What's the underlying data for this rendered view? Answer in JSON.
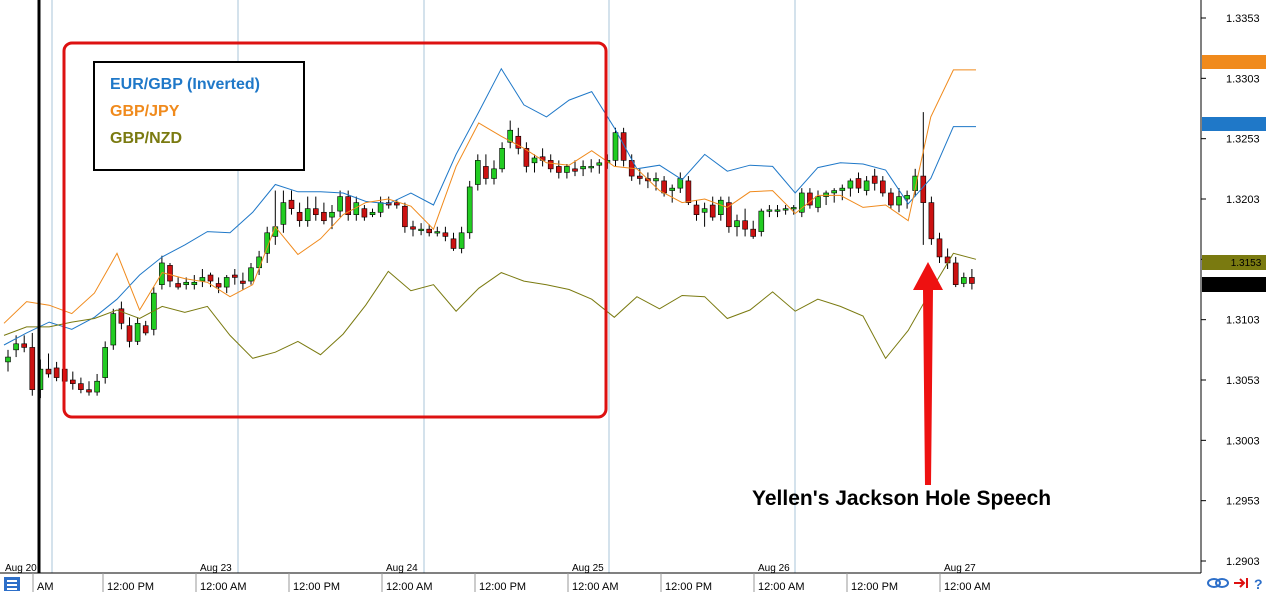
{
  "colors": {
    "eurgbp": "#1f78c8",
    "gbpjpy": "#f08a1c",
    "gbpnzd": "#7a7a10",
    "candle_up": "#22cc22",
    "candle_down": "#cc1111",
    "highlight_box": "#dd1111",
    "arrow": "#ee1111",
    "grid": "#a8c4d8"
  },
  "legend": {
    "items": [
      {
        "label": "EUR/GBP (Inverted)",
        "color": "#1f78c8"
      },
      {
        "label": "GBP/JPY",
        "color": "#f08a1c"
      },
      {
        "label": "GBP/NZD",
        "color": "#7a7a10"
      }
    ]
  },
  "annotation": {
    "text": "Yellen's Jackson Hole Speech",
    "icon": "red-arrow-up-icon"
  },
  "price_badges": {
    "current": "1.3133",
    "hidden_label": "1.3153"
  },
  "chart_data": {
    "type": "line",
    "title": "",
    "ylim": [
      1.2903,
      1.3353
    ],
    "y_ticks": [
      "1.3353",
      "1.3303",
      "1.3253",
      "1.3203",
      "1.3153",
      "1.3103",
      "1.3053",
      "1.3003",
      "1.2953",
      "1.2903"
    ],
    "date_labels": [
      "Aug 20",
      "Aug 23",
      "Aug 24",
      "Aug 25",
      "Aug 26",
      "Aug 27"
    ],
    "time_labels": [
      "AM",
      "12:00 PM",
      "12:00 AM",
      "12:00 PM",
      "12:00 AM",
      "12:00 PM",
      "12:00 AM",
      "12:00 PM",
      "12:00 AM",
      "12:00 PM",
      "12:00 AM"
    ],
    "series": [
      {
        "name": "EUR/GBP (Inverted)",
        "values": [
          1.3082,
          1.3092,
          1.3101,
          1.3095,
          1.3105,
          1.312,
          1.314,
          1.3155,
          1.3165,
          1.3176,
          1.3175,
          1.3192,
          1.3215,
          1.3209,
          1.3209,
          1.3208,
          1.3201,
          1.3199,
          1.3208,
          1.3198,
          1.324,
          1.3275,
          1.3311,
          1.3281,
          1.3271,
          1.3285,
          1.3292,
          1.3262,
          1.3228,
          1.3231,
          1.3219,
          1.324,
          1.3226,
          1.3231,
          1.323,
          1.3208,
          1.3229,
          1.3233,
          1.3232,
          1.3227,
          1.3199,
          1.322,
          1.3263,
          1.3263
        ]
      },
      {
        "name": "GBP/JPY",
        "values": [
          1.31,
          1.3118,
          1.3115,
          1.3108,
          1.3125,
          1.3158,
          1.3111,
          1.3142,
          1.3137,
          1.3134,
          1.3122,
          1.3132,
          1.318,
          1.3157,
          1.317,
          1.319,
          1.32,
          1.3203,
          1.3197,
          1.3178,
          1.323,
          1.3266,
          1.3255,
          1.3245,
          1.3233,
          1.3231,
          1.3243,
          1.323,
          1.3228,
          1.321,
          1.32,
          1.3203,
          1.3196,
          1.3209,
          1.321,
          1.3191,
          1.3206,
          1.3206,
          1.3196,
          1.3198,
          1.3185,
          1.3271,
          1.331,
          1.331
        ]
      },
      {
        "name": "GBP/NZD",
        "values": [
          1.309,
          1.3097,
          1.3097,
          1.3101,
          1.3104,
          1.3111,
          1.3104,
          1.3114,
          1.3109,
          1.3114,
          1.309,
          1.3071,
          1.3076,
          1.3085,
          1.3074,
          1.3091,
          1.3115,
          1.3143,
          1.3127,
          1.3132,
          1.311,
          1.3129,
          1.3142,
          1.3135,
          1.3132,
          1.3128,
          1.312,
          1.3105,
          1.3122,
          1.3112,
          1.3123,
          1.3122,
          1.3104,
          1.3111,
          1.3126,
          1.311,
          1.312,
          1.3114,
          1.3106,
          1.3071,
          1.3094,
          1.3127,
          1.3158,
          1.3153
        ]
      },
      {
        "name": "",
        "candles": [
          [
            1.3068,
            1.3078,
            1.306,
            1.3072
          ],
          [
            1.3078,
            1.309,
            1.3072,
            1.3083
          ],
          [
            1.3083,
            1.309,
            1.3076,
            1.308
          ],
          [
            1.308,
            1.3092,
            1.304,
            1.3045
          ],
          [
            1.3045,
            1.307,
            1.3038,
            1.3062
          ],
          [
            1.3062,
            1.3075,
            1.3055,
            1.3058
          ],
          [
            1.3063,
            1.3068,
            1.3052,
            1.3055
          ],
          [
            1.3062,
            1.3068,
            1.305,
            1.3052
          ],
          [
            1.3053,
            1.306,
            1.3045,
            1.305
          ],
          [
            1.305,
            1.3055,
            1.3042,
            1.3045
          ],
          [
            1.3045,
            1.3052,
            1.304,
            1.3043
          ],
          [
            1.3043,
            1.3058,
            1.304,
            1.3052
          ],
          [
            1.3055,
            1.3085,
            1.305,
            1.308
          ],
          [
            1.3082,
            1.3112,
            1.3078,
            1.3108
          ],
          [
            1.3112,
            1.3118,
            1.3095,
            1.31
          ],
          [
            1.3098,
            1.3105,
            1.308,
            1.3085
          ],
          [
            1.3085,
            1.3105,
            1.3082,
            1.31
          ],
          [
            1.3098,
            1.3102,
            1.309,
            1.3092
          ],
          [
            1.3095,
            1.313,
            1.309,
            1.3125
          ],
          [
            1.3132,
            1.3156,
            1.3128,
            1.315
          ],
          [
            1.3148,
            1.315,
            1.313,
            1.3135
          ],
          [
            1.3133,
            1.3138,
            1.3128,
            1.313
          ],
          [
            1.3132,
            1.3138,
            1.3128,
            1.3134
          ],
          [
            1.3132,
            1.314,
            1.3128,
            1.3134
          ],
          [
            1.3135,
            1.3145,
            1.313,
            1.3138
          ],
          [
            1.314,
            1.3142,
            1.313,
            1.3135
          ],
          [
            1.3133,
            1.3138,
            1.3125,
            1.313
          ],
          [
            1.313,
            1.314,
            1.3125,
            1.3138
          ],
          [
            1.314,
            1.3145,
            1.3132,
            1.3138
          ],
          [
            1.3135,
            1.3142,
            1.3128,
            1.3133
          ],
          [
            1.3135,
            1.315,
            1.3132,
            1.3146
          ],
          [
            1.3146,
            1.316,
            1.314,
            1.3155
          ],
          [
            1.3158,
            1.318,
            1.315,
            1.3175
          ],
          [
            1.3172,
            1.321,
            1.3165,
            1.318
          ],
          [
            1.3182,
            1.321,
            1.3175,
            1.32
          ],
          [
            1.3202,
            1.321,
            1.319,
            1.3195
          ],
          [
            1.3192,
            1.32,
            1.318,
            1.3185
          ],
          [
            1.3185,
            1.3205,
            1.318,
            1.3195
          ],
          [
            1.3195,
            1.3205,
            1.3185,
            1.319
          ],
          [
            1.3192,
            1.32,
            1.3182,
            1.3185
          ],
          [
            1.3188,
            1.3198,
            1.3178,
            1.3192
          ],
          [
            1.3193,
            1.321,
            1.3188,
            1.3205
          ],
          [
            1.3205,
            1.321,
            1.3185,
            1.319
          ],
          [
            1.319,
            1.3205,
            1.3185,
            1.32
          ],
          [
            1.3195,
            1.3198,
            1.3185,
            1.3188
          ],
          [
            1.319,
            1.3195,
            1.3188,
            1.3192
          ],
          [
            1.3192,
            1.3205,
            1.3188,
            1.32
          ],
          [
            1.32,
            1.3205,
            1.3195,
            1.3198
          ],
          [
            1.32,
            1.3202,
            1.3195,
            1.3198
          ],
          [
            1.3197,
            1.32,
            1.3175,
            1.318
          ],
          [
            1.318,
            1.3185,
            1.3172,
            1.3178
          ],
          [
            1.3178,
            1.3183,
            1.3173,
            1.3178
          ],
          [
            1.3178,
            1.3182,
            1.3172,
            1.3175
          ],
          [
            1.3175,
            1.318,
            1.3172,
            1.3176
          ],
          [
            1.3175,
            1.318,
            1.3168,
            1.3172
          ],
          [
            1.317,
            1.3175,
            1.316,
            1.3162
          ],
          [
            1.3162,
            1.318,
            1.3158,
            1.3175
          ],
          [
            1.3175,
            1.3218,
            1.317,
            1.3213
          ],
          [
            1.3215,
            1.324,
            1.321,
            1.3235
          ],
          [
            1.323,
            1.324,
            1.3215,
            1.322
          ],
          [
            1.322,
            1.3235,
            1.3215,
            1.3228
          ],
          [
            1.3228,
            1.325,
            1.3225,
            1.3245
          ],
          [
            1.325,
            1.3268,
            1.3245,
            1.326
          ],
          [
            1.3255,
            1.3262,
            1.324,
            1.3245
          ],
          [
            1.3245,
            1.325,
            1.3225,
            1.323
          ],
          [
            1.3233,
            1.324,
            1.3225,
            1.3237
          ],
          [
            1.3238,
            1.3245,
            1.323,
            1.3235
          ],
          [
            1.3235,
            1.324,
            1.3225,
            1.3228
          ],
          [
            1.323,
            1.3235,
            1.322,
            1.3225
          ],
          [
            1.3225,
            1.3232,
            1.322,
            1.323
          ],
          [
            1.3228,
            1.3235,
            1.3222,
            1.3226
          ],
          [
            1.3228,
            1.3235,
            1.3222,
            1.323
          ],
          [
            1.323,
            1.3236,
            1.3225,
            1.323
          ],
          [
            1.3231,
            1.3236,
            1.3224,
            1.3233
          ],
          [
            1.3233,
            1.324,
            1.3228,
            1.3235
          ],
          [
            1.3235,
            1.3262,
            1.323,
            1.3258
          ],
          [
            1.3258,
            1.3262,
            1.323,
            1.3235
          ],
          [
            1.3235,
            1.324,
            1.3218,
            1.3222
          ],
          [
            1.3222,
            1.3228,
            1.3215,
            1.322
          ],
          [
            1.322,
            1.3225,
            1.3212,
            1.3218
          ],
          [
            1.3218,
            1.3225,
            1.321,
            1.322
          ],
          [
            1.3218,
            1.3222,
            1.3205,
            1.3208
          ],
          [
            1.321,
            1.3215,
            1.32,
            1.3212
          ],
          [
            1.3212,
            1.3225,
            1.3208,
            1.322
          ],
          [
            1.3218,
            1.3222,
            1.3198,
            1.32
          ],
          [
            1.3198,
            1.3202,
            1.3185,
            1.319
          ],
          [
            1.3192,
            1.32,
            1.318,
            1.3195
          ],
          [
            1.3198,
            1.3205,
            1.3185,
            1.3188
          ],
          [
            1.319,
            1.3205,
            1.3185,
            1.3202
          ],
          [
            1.32,
            1.3205,
            1.3175,
            1.318
          ],
          [
            1.318,
            1.319,
            1.3172,
            1.3185
          ],
          [
            1.3185,
            1.3195,
            1.3172,
            1.3178
          ],
          [
            1.3178,
            1.3185,
            1.317,
            1.3172
          ],
          [
            1.3176,
            1.3195,
            1.3172,
            1.3193
          ],
          [
            1.3193,
            1.3198,
            1.3188,
            1.3194
          ],
          [
            1.3194,
            1.3198,
            1.3188,
            1.3194
          ],
          [
            1.3194,
            1.3198,
            1.319,
            1.3195
          ],
          [
            1.3195,
            1.3198,
            1.319,
            1.3196
          ],
          [
            1.3192,
            1.3212,
            1.3188,
            1.3208
          ],
          [
            1.3208,
            1.3212,
            1.3195,
            1.3198
          ],
          [
            1.3196,
            1.321,
            1.3192,
            1.3205
          ],
          [
            1.3205,
            1.321,
            1.3198,
            1.3208
          ],
          [
            1.3208,
            1.3212,
            1.32,
            1.321
          ],
          [
            1.321,
            1.3215,
            1.3202,
            1.3212
          ],
          [
            1.3212,
            1.322,
            1.3205,
            1.3218
          ],
          [
            1.322,
            1.3225,
            1.3208,
            1.3212
          ],
          [
            1.321,
            1.3222,
            1.3206,
            1.3218
          ],
          [
            1.3222,
            1.3228,
            1.321,
            1.3216
          ],
          [
            1.3218,
            1.3222,
            1.3205,
            1.3208
          ],
          [
            1.3208,
            1.3212,
            1.3195,
            1.3198
          ],
          [
            1.3198,
            1.3212,
            1.3192,
            1.3205
          ],
          [
            1.3203,
            1.321,
            1.3195,
            1.3206
          ],
          [
            1.321,
            1.3228,
            1.3205,
            1.3222
          ],
          [
            1.3222,
            1.3275,
            1.3165,
            1.32
          ],
          [
            1.32,
            1.3205,
            1.3165,
            1.317
          ],
          [
            1.317,
            1.3175,
            1.315,
            1.3155
          ],
          [
            1.3155,
            1.3162,
            1.3145,
            1.315
          ],
          [
            1.315,
            1.3155,
            1.313,
            1.3132
          ],
          [
            1.3133,
            1.3142,
            1.313,
            1.3138
          ],
          [
            1.3138,
            1.3145,
            1.3128,
            1.3133
          ]
        ]
      }
    ]
  }
}
